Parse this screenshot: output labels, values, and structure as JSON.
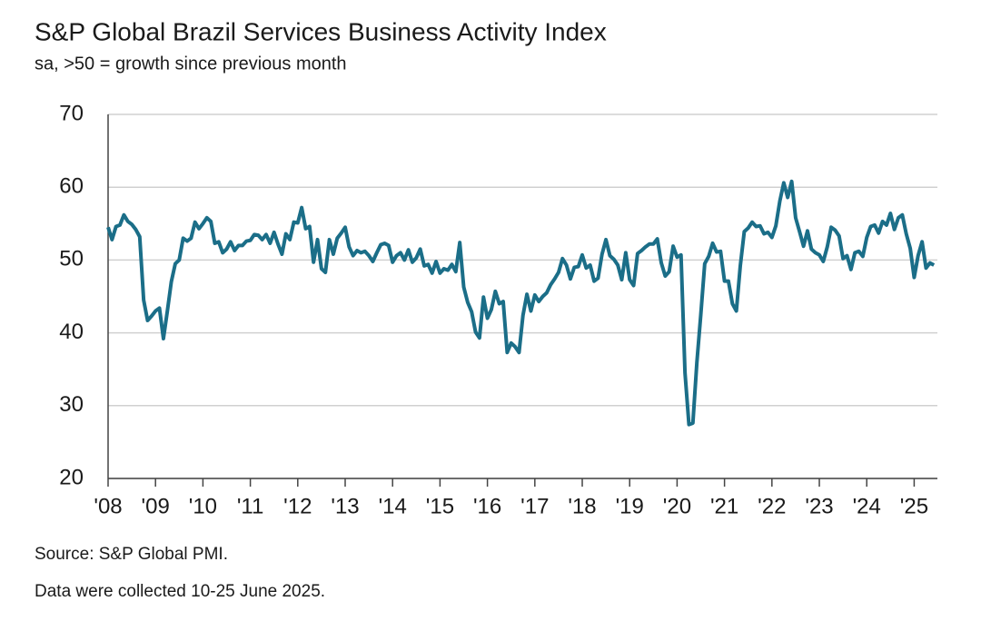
{
  "chart_data": {
    "type": "line",
    "title": "S&P Global Brazil Services Business Activity Index",
    "subtitle": "sa, >50 = growth since previous month",
    "source": "Source: S&P Global PMI.",
    "note": "Data were collected 10-25 June 2025.",
    "color": "#1b6e88",
    "grid": true,
    "ylim": [
      20,
      70
    ],
    "yticks": [
      20,
      30,
      40,
      50,
      60,
      70
    ],
    "xlim": [
      2008,
      2025.49
    ],
    "xticks": [
      {
        "value": 2008,
        "label": "'08"
      },
      {
        "value": 2009,
        "label": "'09"
      },
      {
        "value": 2010,
        "label": "'10"
      },
      {
        "value": 2011,
        "label": "'11"
      },
      {
        "value": 2012,
        "label": "'12"
      },
      {
        "value": 2013,
        "label": "'13"
      },
      {
        "value": 2014,
        "label": "'14"
      },
      {
        "value": 2015,
        "label": "'15"
      },
      {
        "value": 2016,
        "label": "'16"
      },
      {
        "value": 2017,
        "label": "'17"
      },
      {
        "value": 2018,
        "label": "'18"
      },
      {
        "value": 2019,
        "label": "'19"
      },
      {
        "value": 2020,
        "label": "'20"
      },
      {
        "value": 2021,
        "label": "'21"
      },
      {
        "value": 2022,
        "label": "'22"
      },
      {
        "value": 2023,
        "label": "'23"
      },
      {
        "value": 2024,
        "label": "'24"
      },
      {
        "value": 2025,
        "label": "'25"
      }
    ],
    "x": [
      2008,
      2008.083,
      2008.167,
      2008.25,
      2008.333,
      2008.417,
      2008.5,
      2008.583,
      2008.667,
      2008.75,
      2008.833,
      2008.917,
      2009,
      2009.083,
      2009.167,
      2009.25,
      2009.333,
      2009.417,
      2009.5,
      2009.583,
      2009.667,
      2009.75,
      2009.833,
      2009.917,
      2010,
      2010.083,
      2010.167,
      2010.25,
      2010.333,
      2010.417,
      2010.5,
      2010.583,
      2010.667,
      2010.75,
      2010.833,
      2010.917,
      2011,
      2011.083,
      2011.167,
      2011.25,
      2011.333,
      2011.417,
      2011.5,
      2011.583,
      2011.667,
      2011.75,
      2011.833,
      2011.917,
      2012,
      2012.083,
      2012.167,
      2012.25,
      2012.333,
      2012.417,
      2012.5,
      2012.583,
      2012.667,
      2012.75,
      2012.833,
      2012.917,
      2013,
      2013.083,
      2013.167,
      2013.25,
      2013.333,
      2013.417,
      2013.5,
      2013.583,
      2013.667,
      2013.75,
      2013.833,
      2013.917,
      2014,
      2014.083,
      2014.167,
      2014.25,
      2014.333,
      2014.417,
      2014.5,
      2014.583,
      2014.667,
      2014.75,
      2014.833,
      2014.917,
      2015,
      2015.083,
      2015.167,
      2015.25,
      2015.333,
      2015.417,
      2015.5,
      2015.583,
      2015.667,
      2015.75,
      2015.833,
      2015.917,
      2016,
      2016.083,
      2016.167,
      2016.25,
      2016.333,
      2016.417,
      2016.5,
      2016.583,
      2016.667,
      2016.75,
      2016.833,
      2016.917,
      2017,
      2017.083,
      2017.167,
      2017.25,
      2017.333,
      2017.417,
      2017.5,
      2017.583,
      2017.667,
      2017.75,
      2017.833,
      2017.917,
      2018,
      2018.083,
      2018.167,
      2018.25,
      2018.333,
      2018.417,
      2018.5,
      2018.583,
      2018.667,
      2018.75,
      2018.833,
      2018.917,
      2019,
      2019.083,
      2019.167,
      2019.25,
      2019.333,
      2019.417,
      2019.5,
      2019.583,
      2019.667,
      2019.75,
      2019.833,
      2019.917,
      2020,
      2020.083,
      2020.167,
      2020.25,
      2020.333,
      2020.417,
      2020.5,
      2020.583,
      2020.667,
      2020.75,
      2020.833,
      2020.917,
      2021,
      2021.083,
      2021.167,
      2021.25,
      2021.333,
      2021.417,
      2021.5,
      2021.583,
      2021.667,
      2021.75,
      2021.833,
      2021.917,
      2022,
      2022.083,
      2022.167,
      2022.25,
      2022.333,
      2022.417,
      2022.5,
      2022.583,
      2022.667,
      2022.75,
      2022.833,
      2022.917,
      2023,
      2023.083,
      2023.167,
      2023.25,
      2023.333,
      2023.417,
      2023.5,
      2023.583,
      2023.667,
      2023.75,
      2023.833,
      2023.917,
      2024,
      2024.083,
      2024.167,
      2024.25,
      2024.333,
      2024.417,
      2024.5,
      2024.583,
      2024.667,
      2024.75,
      2024.833,
      2024.917,
      2025,
      2025.083,
      2025.167,
      2025.25,
      2025.333,
      2025.417
    ],
    "values": [
      54.5,
      52.8,
      54.6,
      54.8,
      56.2,
      55.3,
      54.9,
      54.2,
      53.2,
      44.5,
      41.7,
      42.3,
      43,
      43.4,
      39.2,
      43,
      47,
      49.5,
      50,
      53,
      52.6,
      53,
      55.2,
      54.3,
      55,
      55.8,
      55.3,
      52.3,
      52.5,
      51,
      51.5,
      52.5,
      51.3,
      52,
      52,
      52.6,
      52.7,
      53.5,
      53.4,
      52.8,
      53.5,
      52.3,
      53.8,
      52.2,
      50.8,
      53.6,
      52.8,
      55.2,
      55.1,
      57.2,
      54.3,
      54.6,
      49.7,
      52.8,
      48.8,
      48.3,
      52.8,
      50.8,
      53,
      53.7,
      54.5,
      51.8,
      50.6,
      51.3,
      51,
      51.2,
      50.6,
      49.8,
      51,
      52.1,
      52.3,
      52,
      49.7,
      50.6,
      51,
      50,
      51.4,
      49.7,
      50.3,
      51.5,
      49.2,
      49.4,
      48.2,
      49.8,
      48.2,
      48.8,
      48.6,
      49.4,
      48.4,
      52.4,
      46.3,
      44.2,
      42.9,
      40.1,
      39.3,
      44.9,
      42,
      43.2,
      45.7,
      44,
      44.3,
      37.3,
      38.6,
      38.1,
      37.3,
      42.4,
      45.3,
      43,
      45.2,
      44.3,
      45,
      45.5,
      46.6,
      47.4,
      48.3,
      50.2,
      49.3,
      47.4,
      49,
      49.1,
      50.7,
      48.9,
      49.3,
      47.1,
      47.5,
      50.8,
      52.8,
      50.6,
      50.1,
      49.3,
      47.3,
      51,
      47.3,
      46.5,
      50.9,
      51.3,
      51.8,
      52.2,
      52.2,
      52.9,
      49.6,
      47.8,
      48.4,
      51.9,
      50.4,
      50.7,
      34.5,
      27.4,
      27.6,
      35.9,
      42.5,
      49.5,
      50.5,
      52.3,
      51.1,
      51.2,
      47.1,
      47.1,
      44,
      43,
      49.2,
      53.9,
      54.4,
      55.2,
      54.6,
      54.7,
      53.6,
      53.8,
      53.1,
      54.7,
      58.1,
      60.6,
      58.6,
      60.8,
      55.8,
      53.9,
      51.9,
      54,
      51.5,
      51,
      50.7,
      49.8,
      51.8,
      54.5,
      54.1,
      53.3,
      50.2,
      50.6,
      48.7,
      51,
      51.2,
      50.5,
      53.1,
      54.6,
      54.8,
      53.7,
      55.3,
      54.8,
      56.4,
      54.2,
      55.8,
      56.2,
      53.6,
      51.6,
      47.6,
      50.6,
      52.5,
      48.9,
      49.6,
      49.3
    ]
  }
}
